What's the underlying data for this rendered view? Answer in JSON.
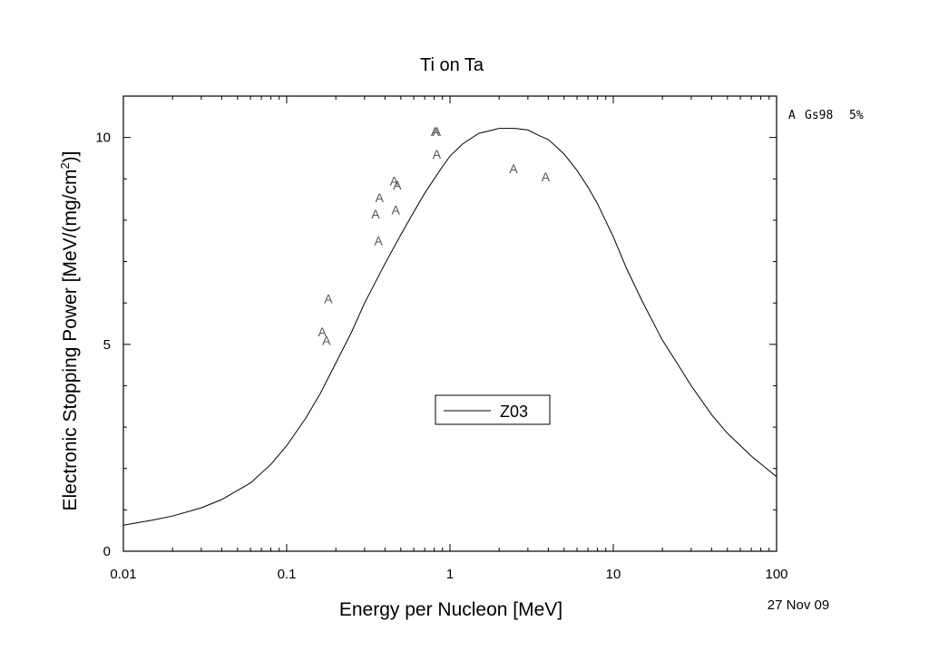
{
  "chart_data": {
    "type": "line",
    "title": "Ti on Ta",
    "xlabel": "Energy per Nucleon [MeV]",
    "ylabel": "Electronic Stopping Power [MeV/(mg/cm",
    "ylabel_sup": "2",
    "ylabel_end": ")]",
    "x_scale": "log",
    "xlim": [
      0.01,
      100
    ],
    "ylim": [
      0,
      11
    ],
    "x_ticks": [
      {
        "value": 0.01,
        "label": "0.01"
      },
      {
        "value": 0.1,
        "label": "0.1"
      },
      {
        "value": 1,
        "label": "1"
      },
      {
        "value": 10,
        "label": "10"
      },
      {
        "value": 100,
        "label": "100"
      }
    ],
    "y_ticks": [
      {
        "value": 0,
        "label": "0"
      },
      {
        "value": 5,
        "label": "5"
      },
      {
        "value": 10,
        "label": "10"
      }
    ],
    "grid": false,
    "legend": {
      "position": "center-bottom",
      "entries": [
        {
          "name": "Z03",
          "style": "line"
        }
      ]
    },
    "series": [
      {
        "name": "Z03",
        "style": "line",
        "x": [
          0.01,
          0.015,
          0.02,
          0.03,
          0.04,
          0.06,
          0.08,
          0.1,
          0.13,
          0.16,
          0.2,
          0.25,
          0.3,
          0.4,
          0.5,
          0.6,
          0.7,
          0.8,
          0.9,
          1.0,
          1.2,
          1.5,
          2.0,
          2.5,
          3.0,
          3.5,
          4.0,
          5.0,
          6.0,
          7.0,
          8.0,
          10,
          12,
          15,
          20,
          25,
          30,
          40,
          50,
          70,
          100
        ],
        "y": [
          0.63,
          0.75,
          0.85,
          1.05,
          1.25,
          1.65,
          2.1,
          2.55,
          3.2,
          3.8,
          4.55,
          5.3,
          6.0,
          6.95,
          7.65,
          8.2,
          8.65,
          9.0,
          9.3,
          9.55,
          9.85,
          10.1,
          10.22,
          10.22,
          10.18,
          10.05,
          9.95,
          9.6,
          9.2,
          8.8,
          8.4,
          7.6,
          6.85,
          6.05,
          5.1,
          4.5,
          4.0,
          3.3,
          2.85,
          2.3,
          1.8
        ]
      },
      {
        "name": "",
        "style": "marker",
        "marker": "A",
        "x": [
          0.165,
          0.175,
          0.18,
          0.35,
          0.365,
          0.37,
          0.455,
          0.465,
          0.475,
          0.81,
          0.83,
          0.83,
          2.45,
          3.85
        ],
        "y": [
          5.3,
          5.1,
          6.1,
          8.15,
          7.5,
          8.55,
          8.95,
          8.25,
          8.85,
          10.15,
          10.15,
          9.6,
          9.25,
          9.05
        ]
      }
    ],
    "side_legend": [
      {
        "marker": "A",
        "label": "Gs98",
        "uncertainty": "5%"
      }
    ],
    "date": "27 Nov 09"
  }
}
